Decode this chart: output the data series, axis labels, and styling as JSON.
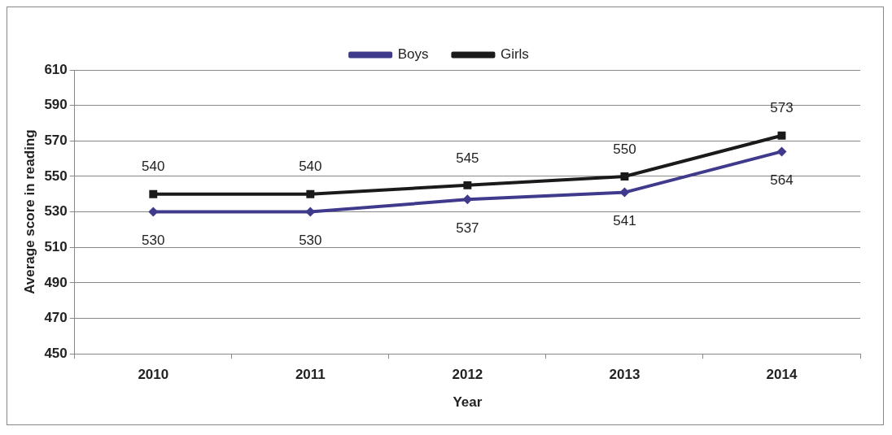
{
  "chart_data": {
    "type": "line",
    "xlabel": "Year",
    "ylabel": "Average score in reading",
    "categories": [
      "2010",
      "2011",
      "2012",
      "2013",
      "2014"
    ],
    "series": [
      {
        "name": "Boys",
        "color": "#3f3a8c",
        "marker": "diamond",
        "values": [
          530,
          530,
          537,
          541,
          564
        ]
      },
      {
        "name": "Girls",
        "color": "#1a1a1a",
        "marker": "square",
        "values": [
          540,
          540,
          545,
          550,
          573
        ]
      }
    ],
    "ylim": [
      450,
      610
    ],
    "yticks": [
      450,
      470,
      490,
      510,
      530,
      550,
      570,
      590,
      610
    ],
    "grid": "y",
    "legend": "top",
    "data_labels": true
  }
}
